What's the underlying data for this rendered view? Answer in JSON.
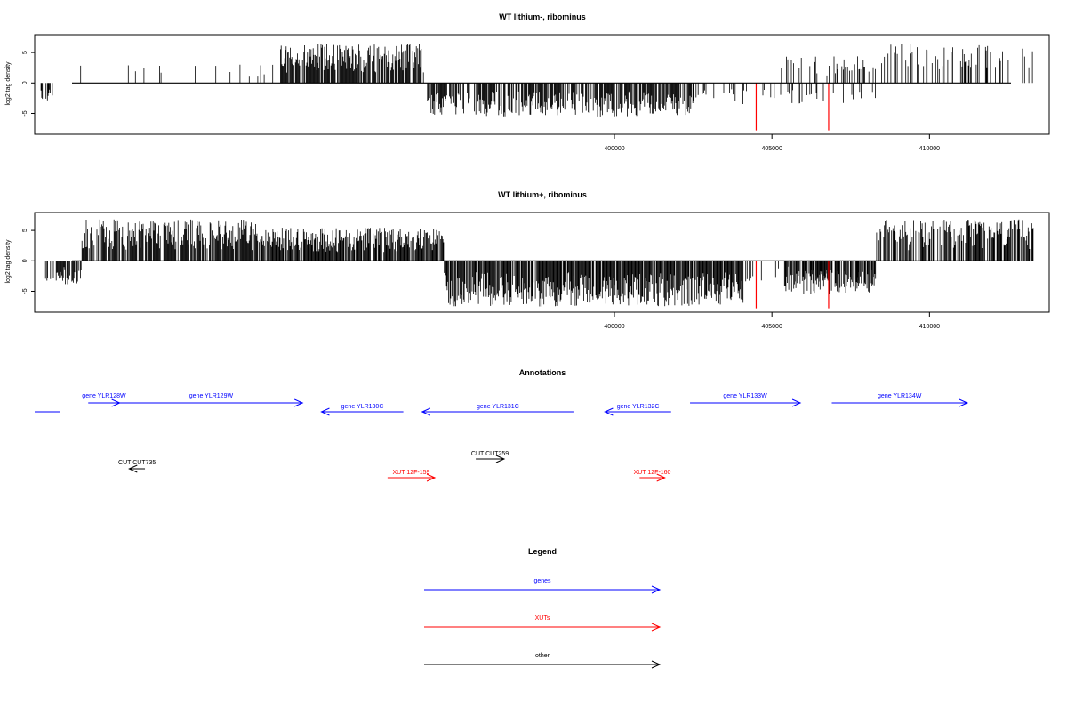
{
  "colors": {
    "gene": "#0000ff",
    "xut": "#ff0000",
    "other": "#000000",
    "marker": "#ff0000",
    "bar": "#000000"
  },
  "chart_data": [
    {
      "type": "bar",
      "title": "WT lithium-, ribominus",
      "xlabel": "",
      "ylabel": "log2 tag density",
      "xlim": [
        381600,
        413800
      ],
      "ylim": [
        -8,
        7.5
      ],
      "yticks": [
        -5,
        0,
        5
      ],
      "xticks": [
        400000,
        405000,
        410000
      ],
      "xtick_labels": [
        "400000",
        "405000",
        "410000"
      ],
      "marker_lines": [
        {
          "x": 404500,
          "y": -7.8,
          "color": "red"
        },
        {
          "x": 406800,
          "y": -7.8,
          "color": "red"
        }
      ],
      "regions": [
        {
          "from": 381800,
          "to": 382200,
          "density": 0.55,
          "sign": -1,
          "max": 3
        },
        {
          "from": 382200,
          "to": 389400,
          "density": 0.05,
          "sign": 1,
          "max": 3
        },
        {
          "from": 389400,
          "to": 394000,
          "density": 0.82,
          "sign": 1,
          "max": 6.5
        },
        {
          "from": 394000,
          "to": 402500,
          "density": 0.68,
          "sign": -1,
          "max": 5.5
        },
        {
          "from": 402500,
          "to": 408500,
          "density": 0.13,
          "sign": -1,
          "max": 3.5
        },
        {
          "from": 408500,
          "to": 405400,
          "density": 0,
          "sign": 1,
          "max": 0
        },
        {
          "from": 405300,
          "to": 408300,
          "density": 0.28,
          "sign": 1,
          "max": 4.5
        },
        {
          "from": 408300,
          "to": 413300,
          "density": 0.25,
          "sign": 1,
          "max": 6.5
        }
      ]
    },
    {
      "type": "bar",
      "title": "WT lithium+, ribominus",
      "xlabel": "",
      "ylabel": "log2 tag density",
      "xlim": [
        381600,
        413800
      ],
      "ylim": [
        -8,
        7.5
      ],
      "yticks": [
        -5,
        0,
        5
      ],
      "xticks": [
        400000,
        405000,
        410000
      ],
      "xtick_labels": [
        "400000",
        "405000",
        "410000"
      ],
      "marker_lines": [
        {
          "x": 404500,
          "y": -7.8,
          "color": "red"
        },
        {
          "x": 406800,
          "y": -7.8,
          "color": "red"
        }
      ],
      "regions": [
        {
          "from": 381900,
          "to": 383100,
          "density": 0.6,
          "sign": -1,
          "max": 4
        },
        {
          "from": 383100,
          "to": 388800,
          "density": 0.85,
          "sign": 1,
          "max": 6.8
        },
        {
          "from": 388800,
          "to": 394600,
          "density": 0.9,
          "sign": 1,
          "max": 5.5
        },
        {
          "from": 394600,
          "to": 404100,
          "density": 0.9,
          "sign": -1,
          "max": 7.5
        },
        {
          "from": 404100,
          "to": 408400,
          "density": 0.2,
          "sign": -1,
          "max": 3.5
        },
        {
          "from": 405400,
          "to": 408300,
          "density": 0.7,
          "sign": -1,
          "max": 5.5
        },
        {
          "from": 408300,
          "to": 413300,
          "density": 0.7,
          "sign": 1,
          "max": 6.8
        }
      ]
    }
  ],
  "annotations": {
    "title": "Annotations",
    "features": [
      {
        "label": "",
        "type": "gene",
        "from": 381600,
        "to": 382400,
        "strand": "+",
        "row": 1,
        "show_head": false
      },
      {
        "label": "gene YLR128W",
        "type": "gene",
        "from": 383300,
        "to": 384300,
        "strand": "+",
        "row": 0
      },
      {
        "label": "gene YLR129W",
        "type": "gene",
        "from": 384300,
        "to": 390100,
        "strand": "+",
        "row": 0
      },
      {
        "label": "gene YLR130C",
        "type": "gene",
        "from": 390700,
        "to": 393300,
        "strand": "-",
        "row": 1
      },
      {
        "label": "gene YLR131C",
        "type": "gene",
        "from": 393900,
        "to": 398700,
        "strand": "-",
        "row": 1
      },
      {
        "label": "gene YLR132C",
        "type": "gene",
        "from": 399700,
        "to": 401800,
        "strand": "-",
        "row": 1
      },
      {
        "label": "gene YLR133W",
        "type": "gene",
        "from": 402400,
        "to": 405900,
        "strand": "+",
        "row": 0
      },
      {
        "label": "gene YLR134W",
        "type": "gene",
        "from": 406900,
        "to": 411200,
        "strand": "+",
        "row": 0
      },
      {
        "label": "CUT CUT735",
        "type": "other",
        "from": 384600,
        "to": 385100,
        "strand": "-",
        "row": 2
      },
      {
        "label": "CUT CUT259",
        "type": "other",
        "from": 395600,
        "to": 396500,
        "strand": "+",
        "row": 3
      },
      {
        "label": "XUT 12F-159",
        "type": "xut",
        "from": 392800,
        "to": 394300,
        "strand": "+",
        "row": 4
      },
      {
        "label": "XUT 12F-160",
        "type": "xut",
        "from": 400800,
        "to": 401600,
        "strand": "+",
        "row": 4
      }
    ]
  },
  "legend": {
    "title": "Legend",
    "items": [
      {
        "label": "genes",
        "type": "gene"
      },
      {
        "label": "XUTs",
        "type": "xut"
      },
      {
        "label": "other",
        "type": "other"
      }
    ]
  }
}
